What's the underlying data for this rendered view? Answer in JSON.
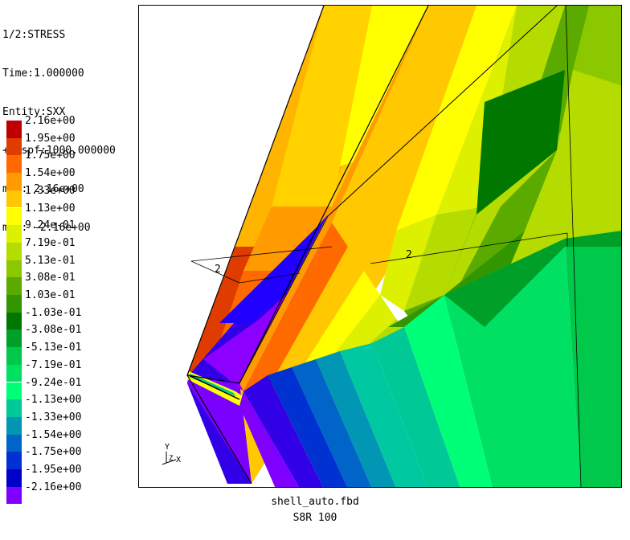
{
  "info": {
    "lines": [
      "1/2:STRESS",
      "Time:1.000000",
      "Entity:SXX",
      "+Dispf:1000.000000",
      "max: 2.16e+00",
      "min: -2.16e+00"
    ]
  },
  "legend": {
    "entries": [
      {
        "label": "2.16e+00",
        "color": "#c00000"
      },
      {
        "label": "1.95e+00",
        "color": "#e03c00"
      },
      {
        "label": "1.75e+00",
        "color": "#ff6a00"
      },
      {
        "label": "1.54e+00",
        "color": "#ff9a00"
      },
      {
        "label": "1.33e+00",
        "color": "#ffc800"
      },
      {
        "label": "1.13e+00",
        "color": "#ffff00"
      },
      {
        "label": "9.24e-01",
        "color": "#dcf000"
      },
      {
        "label": "7.19e-01",
        "color": "#b4dc00"
      },
      {
        "label": "5.13e-01",
        "color": "#8cc800"
      },
      {
        "label": "3.08e-01",
        "color": "#5aaa00"
      },
      {
        "label": "1.03e-01",
        "color": "#329600"
      },
      {
        "label": "-1.03e-01",
        "color": "#007800"
      },
      {
        "label": "-3.08e-01",
        "color": "#00a028"
      },
      {
        "label": "-5.13e-01",
        "color": "#00c84b"
      },
      {
        "label": "-7.19e-01",
        "color": "#00e164"
      },
      {
        "label": "-9.24e-01",
        "color": "#00ff78"
      },
      {
        "label": "-1.13e+00",
        "color": "#00c896"
      },
      {
        "label": "-1.33e+00",
        "color": "#0096b4"
      },
      {
        "label": "-1.54e+00",
        "color": "#0064c8"
      },
      {
        "label": "-1.75e+00",
        "color": "#0032d2"
      },
      {
        "label": "-1.95e+00",
        "color": "#0000c8"
      },
      {
        "label": "-2.16e+00",
        "color": "#8000ff"
      }
    ]
  },
  "viewport": {
    "set_labels": [
      "2",
      "2"
    ],
    "axis_y": "Y",
    "axis_x": "X",
    "axis_z": "Z"
  },
  "footer": {
    "filename": "shell_auto.fbd",
    "model": "S8R 100"
  }
}
